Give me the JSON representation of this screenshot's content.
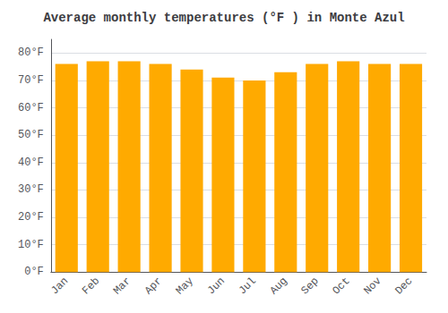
{
  "chart_data": {
    "type": "bar",
    "title": "Average monthly temperatures (°F ) in Monte Azul",
    "categories": [
      "Jan",
      "Feb",
      "Mar",
      "Apr",
      "May",
      "Jun",
      "Jul",
      "Aug",
      "Sep",
      "Oct",
      "Nov",
      "Dec"
    ],
    "values": [
      76,
      77,
      77,
      76,
      74,
      71,
      70,
      73,
      76,
      77,
      76,
      76
    ],
    "color": "#FFAA00",
    "ylim": [
      0,
      85
    ],
    "yticks": [
      {
        "value": 0,
        "label": "0°F"
      },
      {
        "value": 10,
        "label": "10°F"
      },
      {
        "value": 20,
        "label": "20°F"
      },
      {
        "value": 30,
        "label": "30°F"
      },
      {
        "value": 40,
        "label": "40°F"
      },
      {
        "value": 50,
        "label": "50°F"
      },
      {
        "value": 60,
        "label": "60°F"
      },
      {
        "value": 70,
        "label": "70°F"
      },
      {
        "value": 80,
        "label": "80°F"
      }
    ],
    "grid": true
  }
}
